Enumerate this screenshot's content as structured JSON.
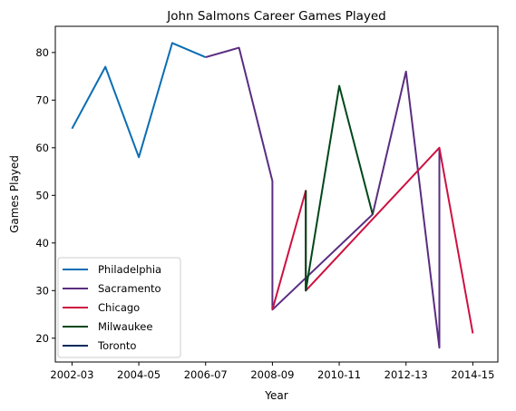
{
  "chart_data": {
    "type": "line",
    "title": "John Salmons Career Games Played",
    "xlabel": "Year",
    "ylabel": "Games Played",
    "x_tick_labels": [
      "2002-03",
      "2004-05",
      "2006-07",
      "2008-09",
      "2010-11",
      "2012-13",
      "2014-15"
    ],
    "y_ticks": [
      20,
      30,
      40,
      50,
      60,
      70,
      80
    ],
    "xlim": [
      2001.5,
      2014.75
    ],
    "ylim": [
      15,
      85.5
    ],
    "grid": false,
    "legend_position": "lower-left",
    "series": [
      {
        "name": "Philadelphia",
        "color": "#0b6db3",
        "x": [
          2002,
          2003,
          2004,
          2005,
          2006
        ],
        "y": [
          64,
          77,
          58,
          82,
          79
        ]
      },
      {
        "name": "Sacramento",
        "color": "#5a2d81",
        "x": [
          2006,
          2007,
          2008,
          2008,
          2011,
          2012,
          2013,
          2013
        ],
        "y": [
          79,
          81,
          53,
          26,
          46,
          76,
          18,
          60
        ]
      },
      {
        "name": "Chicago",
        "color": "#ce1141",
        "x": [
          2008,
          2009,
          2009,
          2013,
          2014
        ],
        "y": [
          26,
          51,
          30,
          60,
          21
        ]
      },
      {
        "name": "Milwaukee",
        "color": "#00471b",
        "x": [
          2009,
          2009,
          2010,
          2011
        ],
        "y": [
          51,
          30,
          73,
          46
        ]
      },
      {
        "name": "Toronto",
        "color": "#002b5c",
        "x": [],
        "y": []
      }
    ]
  }
}
